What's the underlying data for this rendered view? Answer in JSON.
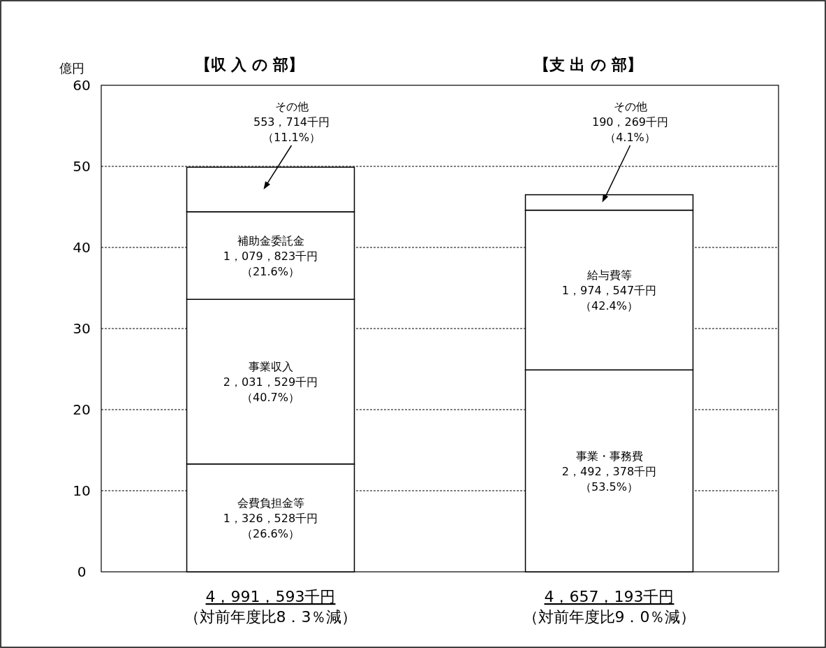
{
  "chart_data": {
    "type": "bar",
    "stacked": true,
    "ylabel": "億円",
    "ylim": [
      0,
      60
    ],
    "yticks": [
      0,
      10,
      20,
      30,
      40,
      50,
      60
    ],
    "grid": "y",
    "categories": [
      "【収 入 の 部】",
      "【支 出 の 部】"
    ],
    "series": [
      {
        "color": "#ffffff",
        "values": [
          13.3,
          24.9
        ]
      },
      {
        "color": "#ffffff",
        "values": [
          20.3,
          19.7
        ]
      },
      {
        "color": "#ffffff",
        "values": [
          10.8,
          1.9
        ]
      },
      {
        "color": "#ffffff",
        "values": [
          5.5,
          null
        ]
      }
    ],
    "totals": [
      "4，991，593千円",
      "4，657，193千円"
    ],
    "annotations": [
      "会費負担金等1，326，528千円（26.6%）",
      "事業収入2，031，529千円（40.7%）",
      "補助金委託金1，079，823千円（21.6%）",
      "その他553，714千円（11.1%）",
      "事業・事務費2，492，378千円（53.5%）",
      "給与費等1，974，547千円（42.4%）",
      "その他190，269千円（4.1%）",
      "（対前年度比8．3％減）",
      "（対前年度比9．0％減）"
    ]
  }
}
